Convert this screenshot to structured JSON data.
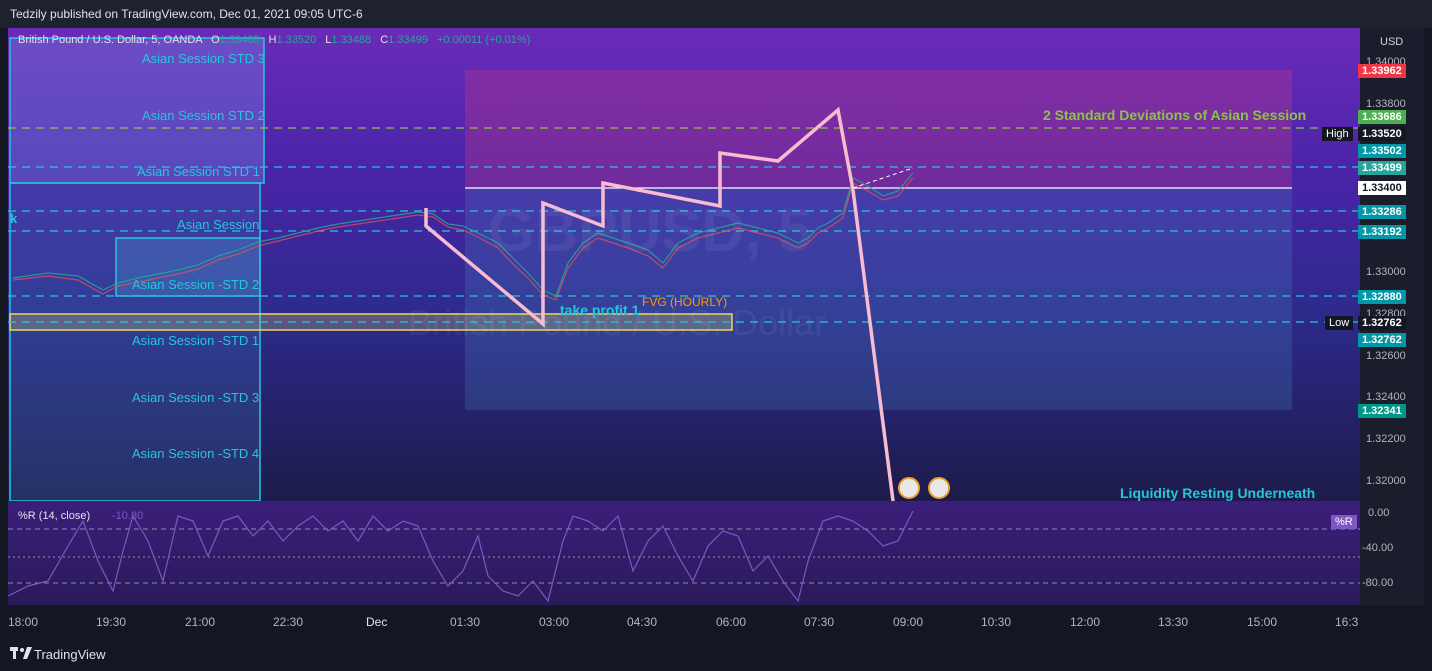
{
  "header": {
    "published": "Tedzily published on TradingView.com, Dec 01, 2021 09:05 UTC-6"
  },
  "symbol": {
    "name": "British Pound / U.S. Dollar, 5, OANDA",
    "open_label": "O",
    "open": "1.33488",
    "high_label": "H",
    "high": "1.33520",
    "low_label": "L",
    "low": "1.33488",
    "close_label": "C",
    "close": "1.33499",
    "change": "+0.00011 (+0.01%)"
  },
  "watermark": {
    "ticker": "GBPUSD, 5",
    "name": "British Pound / U.S. Dollar"
  },
  "session_labels": {
    "std3": "Asian Session STD 3",
    "std2": "Asian Session STD 2",
    "std1": "Asian Session STD 1",
    "session": "Asian Session",
    "k": "k",
    "mstd2": "Asian Session -STD 2",
    "mstd1": "Asian Session -STD 1",
    "mstd3": "Asian Session -STD 3",
    "mstd4": "Asian Session -STD 4"
  },
  "annotations": {
    "two_std": "2 Standard Deviations of Asian Session",
    "fvg": "FVG (HOURLY)",
    "take_profit": "take profit 1",
    "liquidity": "Liquidity Resting Underneath"
  },
  "price_axis": {
    "currency": "USD",
    "ticks": [
      "1.34000",
      "1.33800",
      "1.33000",
      "1.32800",
      "1.32600",
      "1.32400",
      "1.32200",
      "1.32000"
    ],
    "high_label": "High",
    "low_label": "Low",
    "tags": [
      {
        "value": "1.33962",
        "color": "#f23645"
      },
      {
        "value": "1.33686",
        "color": "#4caf50"
      },
      {
        "value": "1.33520",
        "color": "#131722"
      },
      {
        "value": "1.33502",
        "color": "#0097a7"
      },
      {
        "value": "1.33499",
        "color": "#26a69a"
      },
      {
        "value": "1.33400",
        "color": "#ffffff"
      },
      {
        "value": "1.33286",
        "color": "#0097a7"
      },
      {
        "value": "1.33192",
        "color": "#0097a7"
      },
      {
        "value": "1.32880",
        "color": "#0097a7"
      },
      {
        "value": "1.32762",
        "color": "#131722"
      },
      {
        "value": "1.32762",
        "color": "#0097a7"
      },
      {
        "value": "1.32341",
        "color": "#009688"
      }
    ]
  },
  "oscillator": {
    "label": "%R (14, close)",
    "value": "-10.80",
    "tag": "%R",
    "ticks": [
      "0.00",
      "-40.00",
      "-80.00"
    ]
  },
  "time_axis": {
    "ticks": [
      "18:00",
      "19:30",
      "21:00",
      "22:30",
      "Dec",
      "01:30",
      "03:00",
      "04:30",
      "06:00",
      "07:30",
      "09:00",
      "10:30",
      "12:00",
      "13:30",
      "15:00",
      "16:3"
    ]
  },
  "footer": {
    "brand": "TradingView"
  },
  "colors": {
    "cyan": "#26c6da",
    "pink": "#f8bbd0",
    "green_annot": "#8bc34a",
    "orange": "#ff9800",
    "up": "#26a69a",
    "down": "#ef5350"
  }
}
